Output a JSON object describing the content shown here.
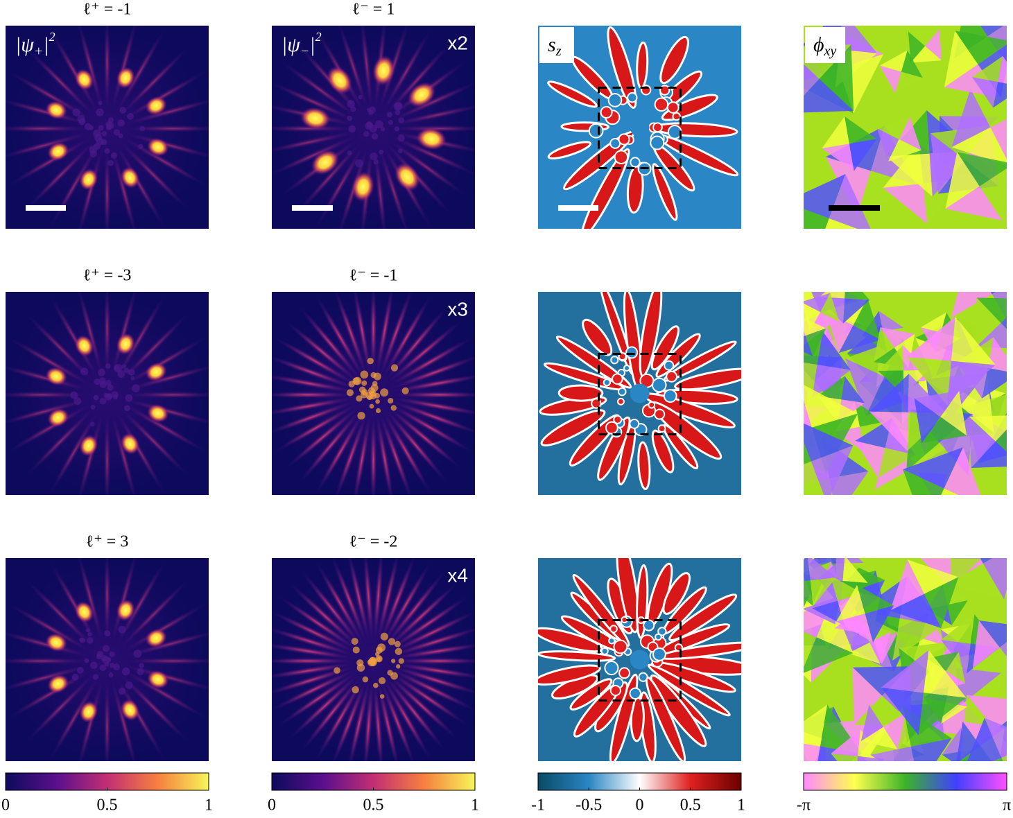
{
  "rows": [
    {
      "plus_title": "ℓ⁺ = -1",
      "minus_title": "ℓ⁻ = 1",
      "scale": "x2"
    },
    {
      "plus_title": "ℓ⁺ = -3",
      "minus_title": "ℓ⁻ = -1",
      "scale": "x3"
    },
    {
      "plus_title": "ℓ⁺ = 3",
      "minus_title": "ℓ⁻ = -2",
      "scale": "x4"
    }
  ],
  "panel_labels": [
    {
      "base": "|ψ",
      "sub": "+",
      "tail": "|",
      "sup": "2"
    },
    {
      "base": "|ψ",
      "sub": "−",
      "tail": "|",
      "sup": "2"
    },
    {
      "base": "s",
      "sub": "z"
    },
    {
      "base": "ϕ",
      "sub": "xy"
    }
  ],
  "colorbars": [
    {
      "lim": [
        0,
        1
      ],
      "ticks": [
        0,
        0.5,
        1
      ]
    },
    {
      "lim": [
        0,
        1
      ],
      "ticks": [
        0,
        0.5,
        1
      ]
    },
    {
      "lim": [
        -1,
        1
      ],
      "ticks": [
        -1,
        -0.5,
        0,
        0.5,
        1
      ]
    },
    {
      "lim": [
        -3.14159,
        3.14159
      ],
      "ticks": [
        {
          "value": -3.14159,
          "label": "-π"
        },
        {
          "value": 3.14159,
          "label": "π"
        }
      ]
    }
  ]
}
